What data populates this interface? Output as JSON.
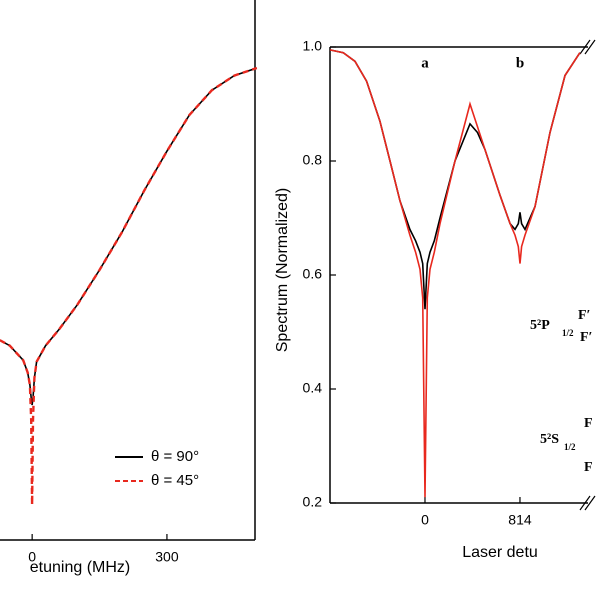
{
  "chart_data": [
    {
      "type": "line",
      "x_label": "etuning (MHz)",
      "x": [
        -72,
        -50,
        -20,
        -10,
        -5,
        -2,
        0,
        2,
        5,
        10,
        30,
        60,
        100,
        150,
        200,
        250,
        300,
        350,
        400,
        450,
        500
      ],
      "series": [
        {
          "name": "θ = 90°",
          "color": "#000000",
          "dash": false,
          "values": [
            0.37,
            0.36,
            0.333,
            0.31,
            0.287,
            0.263,
            0.25,
            0.263,
            0.3,
            0.33,
            0.36,
            0.39,
            0.435,
            0.5,
            0.57,
            0.648,
            0.72,
            0.787,
            0.833,
            0.86,
            0.874
          ]
        },
        {
          "name": "θ = 45°",
          "color": "#e8281e",
          "dash": true,
          "values": [
            0.37,
            0.36,
            0.333,
            0.31,
            0.287,
            0.222,
            0.065,
            0.222,
            0.3,
            0.33,
            0.36,
            0.39,
            0.435,
            0.5,
            0.57,
            0.648,
            0.72,
            0.787,
            0.833,
            0.86,
            0.874
          ]
        }
      ],
      "xlim": [
        -76,
        496
      ],
      "xticks": [
        0,
        300
      ],
      "ylim": [
        0,
        1
      ],
      "legend": "lower right"
    },
    {
      "type": "line",
      "x_label": "Laser detu",
      "y_label": "Spectrum (Normalized)",
      "x": [
        -814,
        -700,
        -600,
        -500,
        -386,
        -300,
        -214,
        -129,
        -80,
        -43,
        -20,
        0,
        20,
        43,
        80,
        129,
        257,
        386,
        450,
        514,
        643,
        729,
        771,
        800,
        814,
        828,
        857,
        943,
        1071,
        1200,
        1328
      ],
      "series": [
        {
          "color": "#000000",
          "dash": false,
          "values": [
            0.995,
            0.99,
            0.975,
            0.94,
            0.87,
            0.8,
            0.73,
            0.68,
            0.66,
            0.64,
            0.62,
            0.54,
            0.62,
            0.64,
            0.66,
            0.7,
            0.8,
            0.865,
            0.85,
            0.82,
            0.74,
            0.69,
            0.68,
            0.69,
            0.71,
            0.69,
            0.68,
            0.72,
            0.85,
            0.95,
            0.99
          ]
        },
        {
          "color": "#e8281e",
          "dash": false,
          "values": [
            0.995,
            0.99,
            0.975,
            0.94,
            0.87,
            0.8,
            0.73,
            0.67,
            0.64,
            0.61,
            0.56,
            0.21,
            0.56,
            0.61,
            0.64,
            0.69,
            0.8,
            0.9,
            0.86,
            0.82,
            0.74,
            0.69,
            0.67,
            0.65,
            0.62,
            0.65,
            0.67,
            0.72,
            0.85,
            0.95,
            0.99
          ]
        }
      ],
      "xlim": [
        -814,
        1397
      ],
      "xticks": [
        0,
        814
      ],
      "ylim": [
        0.2,
        1
      ],
      "yticks": [
        {
          "value": 0.2,
          "label": "0.2"
        },
        {
          "value": 0.4,
          "label": "0.4"
        },
        {
          "value": 0.6,
          "label": "0.6"
        },
        {
          "value": 0.8,
          "label": "0.8"
        },
        {
          "value": 1,
          "label": "1.0"
        }
      ],
      "annotations": [
        "a",
        "b",
        "5²P",
        "1/2",
        "F′",
        "F′",
        "5²S",
        "1/2",
        "F",
        "F"
      ]
    }
  ]
}
